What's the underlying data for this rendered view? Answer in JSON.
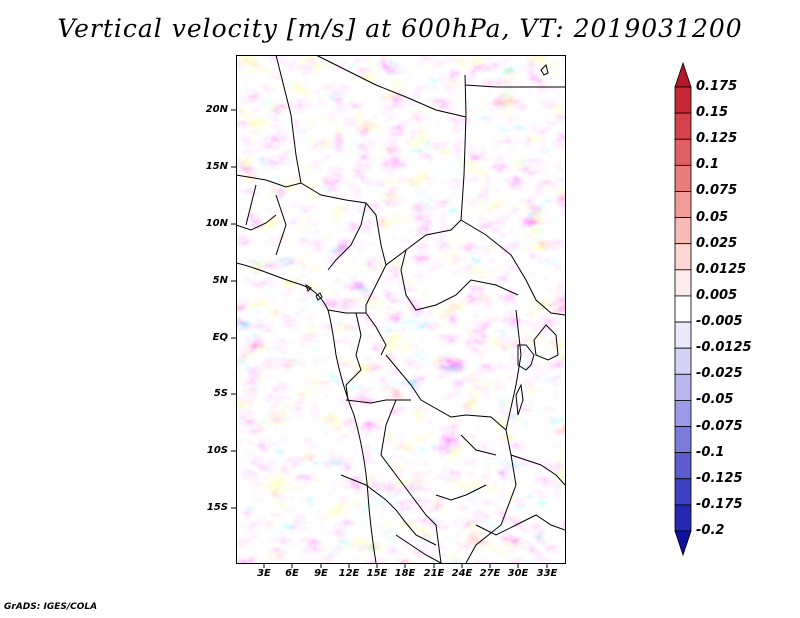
{
  "title": "Vertical velocity [m/s] at 600hPa, VT: 2019031200",
  "footer": "GrADS: IGES/COLA",
  "map": {
    "variable": "Vertical velocity",
    "units": "m/s",
    "level": "600hPa",
    "valid_time": "2019031200",
    "lat_labels": [
      "20N",
      "15N",
      "10N",
      "5N",
      "EQ",
      "5S",
      "10S",
      "15S"
    ],
    "lon_labels": [
      "3E",
      "6E",
      "9E",
      "12E",
      "15E",
      "18E",
      "21E",
      "24E",
      "27E",
      "30E",
      "33E"
    ]
  },
  "colorbar": {
    "labels": [
      "0.175",
      "0.15",
      "0.125",
      "0.1",
      "0.075",
      "0.05",
      "0.025",
      "0.0125",
      "0.005",
      "-0.005",
      "-0.0125",
      "-0.025",
      "-0.05",
      "-0.075",
      "-0.1",
      "-0.125",
      "-0.175",
      "-0.2"
    ],
    "colors": [
      "#b2182b",
      "#c62833",
      "#d6424a",
      "#e05f62",
      "#e97d7c",
      "#f19c99",
      "#f7bcb8",
      "#fbd6d3",
      "#fdeceb",
      "#ffffff",
      "#e9e9fb",
      "#d3d3f6",
      "#b8b8ef",
      "#9a9ae6",
      "#7b7bdc",
      "#5d5dd0",
      "#3f3fc2",
      "#2626b0",
      "#1010a0"
    ]
  }
}
